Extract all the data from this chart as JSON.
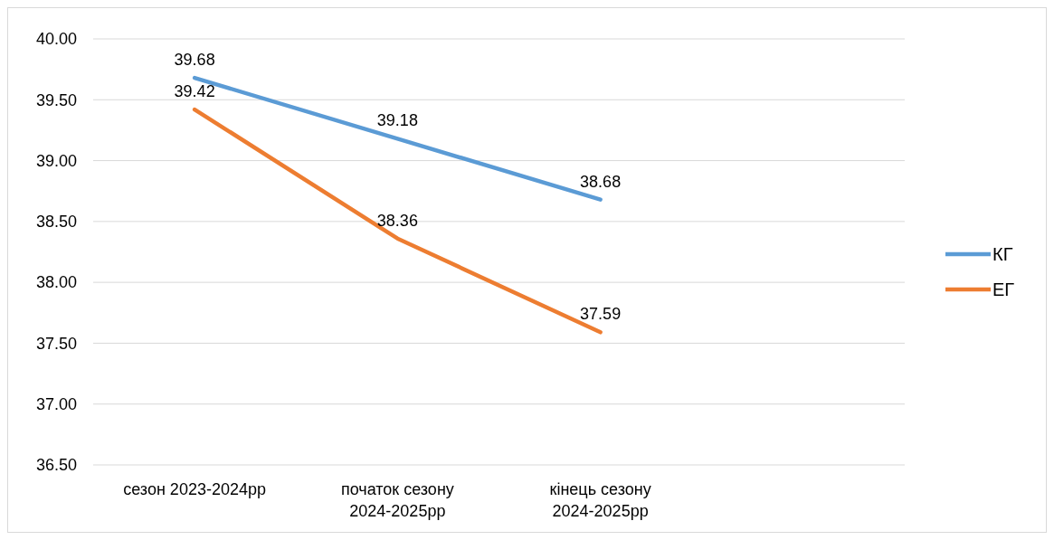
{
  "chart_data": {
    "type": "line",
    "categories": [
      "сезон 2023-2024рр",
      "початок сезону 2024-2025рр",
      "кінець сезону 2024-2025рр",
      null
    ],
    "series": [
      {
        "name": "КГ",
        "color": "#5b9bd5",
        "values": [
          39.68,
          39.18,
          38.68,
          null
        ]
      },
      {
        "name": "ЕГ",
        "color": "#ed7d31",
        "values": [
          39.42,
          38.36,
          37.59,
          null
        ]
      }
    ],
    "ylim": [
      36.5,
      40
    ],
    "yticks": [
      {
        "value": 36.5,
        "label": "36.50"
      },
      {
        "value": 37,
        "label": "37.00"
      },
      {
        "value": 37.5,
        "label": "37.50"
      },
      {
        "value": 38,
        "label": "38.00"
      },
      {
        "value": 38.5,
        "label": "38.50"
      },
      {
        "value": 39,
        "label": "39.00"
      },
      {
        "value": 39.5,
        "label": "39.50"
      },
      {
        "value": 40,
        "label": "40.00"
      }
    ],
    "grid": "y",
    "legend": "right",
    "data_labels": true,
    "marker": "none",
    "line_style": "solid"
  }
}
